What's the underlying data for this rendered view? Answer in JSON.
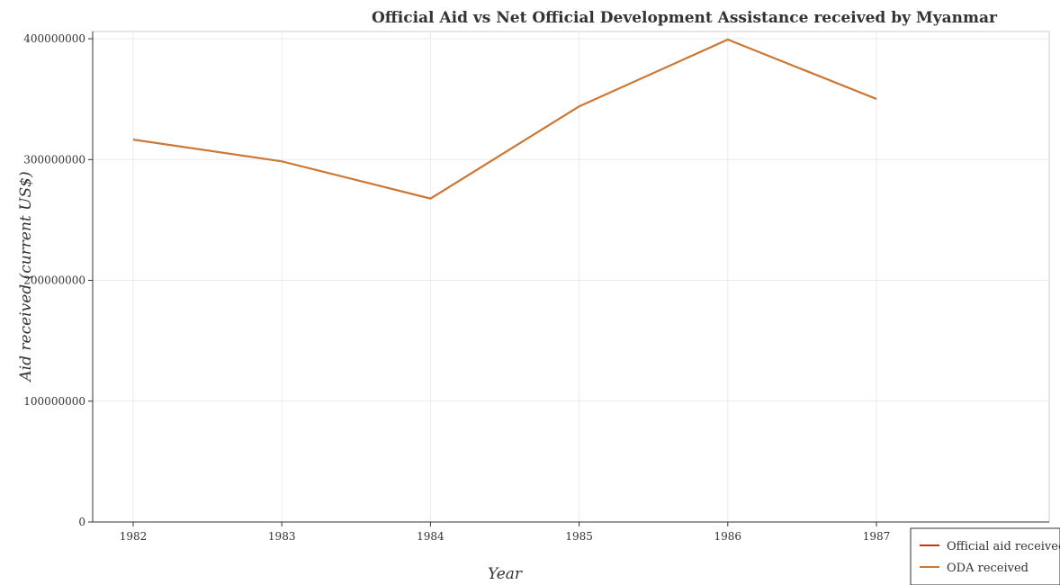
{
  "chart_data": {
    "type": "line",
    "title": "Official Aid vs Net Official Development Assistance received by Myanmar",
    "xlabel": "Year",
    "ylabel": "Aid received (current US$)",
    "x": [
      "1982",
      "1983",
      "1984",
      "1985",
      "1986",
      "1987"
    ],
    "y_ticks": [
      0,
      100000000,
      200000000,
      300000000,
      400000000
    ],
    "y_tick_labels": [
      "0",
      "100000000",
      "200000000",
      "300000000",
      "400000000"
    ],
    "ylim": [
      0,
      406000000
    ],
    "grid": true,
    "legend_position": "bottom-right",
    "series": [
      {
        "name": "Official aid received",
        "color": "#cc3311",
        "values": [
          316500000,
          298500000,
          267700000,
          344000000,
          399300000,
          350200000
        ]
      },
      {
        "name": "ODA received",
        "color": "#cc7a33",
        "values": [
          316500000,
          298500000,
          267700000,
          344000000,
          399300000,
          350200000
        ]
      }
    ]
  }
}
